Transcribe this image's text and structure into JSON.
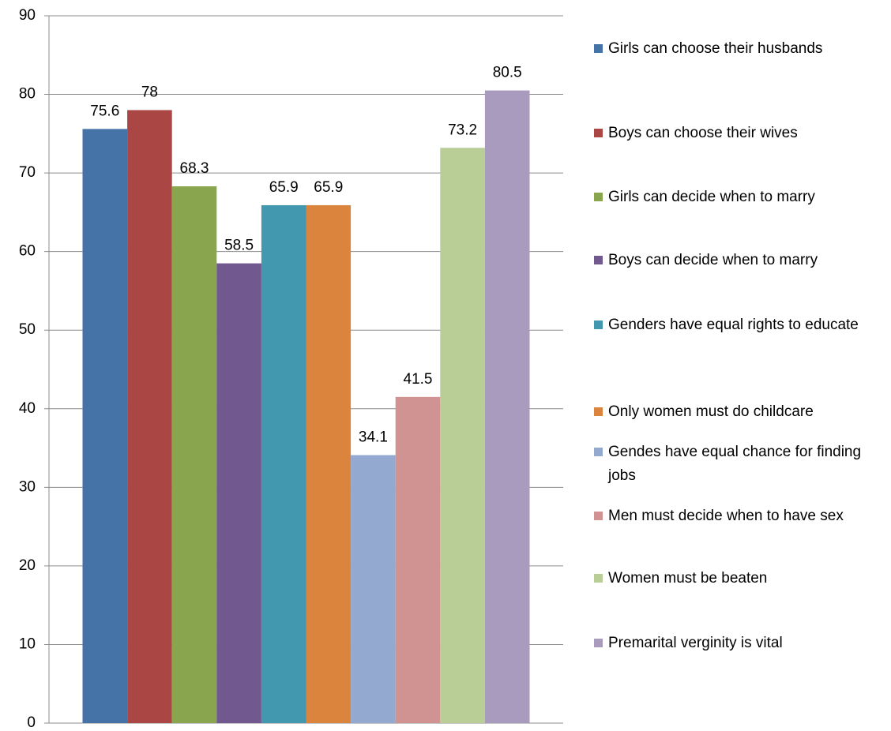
{
  "chart_data": {
    "type": "bar",
    "categories": [
      null
    ],
    "series": [
      {
        "name": "Girls can choose their husbands",
        "color": "#4572a7",
        "values": [
          75.6
        ]
      },
      {
        "name": "Boys can choose their wives",
        "color": "#aa4643",
        "values": [
          78
        ]
      },
      {
        "name": "Girls can decide when to marry",
        "color": "#89a54e",
        "values": [
          68.3
        ]
      },
      {
        "name": "Boys can decide when to marry",
        "color": "#71588f",
        "values": [
          58.5
        ]
      },
      {
        "name": "Genders have equal rights to educate",
        "color": "#4198af",
        "values": [
          65.9
        ]
      },
      {
        "name": "Only women must do childcare",
        "color": "#db843d",
        "values": [
          65.9
        ]
      },
      {
        "name": "Gendes have equal chance for finding jobs",
        "color": "#93a9cf",
        "values": [
          34.1
        ]
      },
      {
        "name": "Men must decide when to have sex",
        "color": "#d19392",
        "values": [
          41.5
        ]
      },
      {
        "name": "Women must be beaten",
        "color": "#b9cd96",
        "values": [
          73.2
        ]
      },
      {
        "name": "Premarital verginity is vital",
        "color": "#a99bbd",
        "values": [
          80.5
        ]
      }
    ],
    "ylim": [
      0,
      90
    ],
    "yticks": [
      0,
      10,
      20,
      30,
      40,
      50,
      60,
      70,
      80,
      90
    ],
    "grid": true,
    "legend": "right"
  }
}
